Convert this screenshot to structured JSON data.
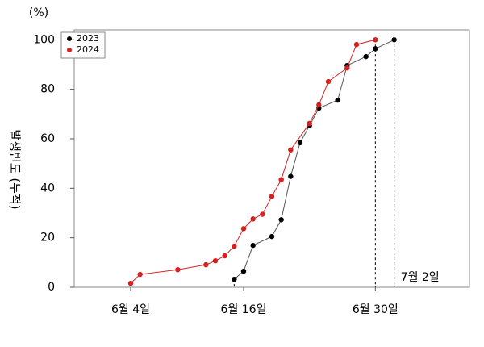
{
  "chart_data": {
    "type": "line",
    "y_unit": "(%)",
    "y_label": "발생빈도 (누적)",
    "xlim": [
      -2,
      40
    ],
    "ylim": [
      0,
      104
    ],
    "xticks": [
      {
        "value": 4,
        "label": "6월 4일"
      },
      {
        "value": 16,
        "label": "6월 16일"
      },
      {
        "value": 30,
        "label": "6월 30일"
      }
    ],
    "yticks": [
      0,
      20,
      40,
      60,
      80,
      100
    ],
    "legend": "top-left",
    "annotations": [
      {
        "text": "7월 2일",
        "x": 32
      }
    ],
    "series": [
      {
        "name": "2023",
        "color": "#000000",
        "x": [
          15,
          16,
          17,
          19,
          20,
          21,
          22,
          23,
          24,
          26,
          27,
          29,
          30,
          32
        ],
        "values": [
          3.2,
          6.5,
          16.9,
          20.5,
          27.3,
          44.8,
          58.4,
          65.3,
          72.4,
          75.6,
          89.6,
          93.2,
          96.4,
          100
        ]
      },
      {
        "name": "2024",
        "color": "#d62020",
        "x": [
          4,
          5,
          9,
          12,
          13,
          14,
          15,
          16,
          17,
          18,
          19,
          20,
          21,
          23,
          24,
          25,
          27,
          28,
          30
        ],
        "values": [
          1.6,
          5.2,
          7.1,
          9.1,
          10.7,
          12.7,
          16.6,
          23.7,
          27.6,
          29.5,
          36.7,
          43.5,
          55.5,
          66.2,
          73.7,
          83.1,
          88.6,
          98.1,
          100
        ]
      }
    ]
  }
}
